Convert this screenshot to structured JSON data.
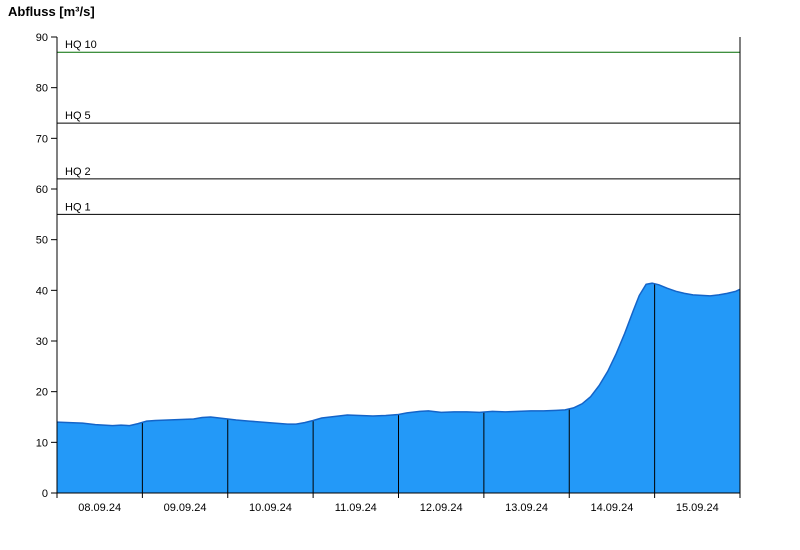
{
  "chart_data": {
    "type": "area",
    "title": "Abfluss [m³/s]",
    "xlabel": "",
    "ylabel": "Abfluss [m³/s]",
    "ylim": [
      0,
      90
    ],
    "yticks": [
      0,
      10,
      20,
      30,
      40,
      50,
      60,
      70,
      80,
      90
    ],
    "x_labels": [
      "08.09.24",
      "09.09.24",
      "10.09.24",
      "11.09.24",
      "12.09.24",
      "13.09.24",
      "14.09.24",
      "15.09.24"
    ],
    "x_range_days": [
      0,
      8
    ],
    "grid": false,
    "legend": "none",
    "thresholds": [
      {
        "label": "HQ 10",
        "value": 87,
        "color": "#006B00"
      },
      {
        "label": "HQ 5",
        "value": 73,
        "color": "#000000"
      },
      {
        "label": "HQ 2",
        "value": 62,
        "color": "#000000"
      },
      {
        "label": "HQ 1",
        "value": 55,
        "color": "#000000"
      }
    ],
    "series": [
      {
        "name": "Abfluss",
        "x": [
          0.0,
          0.15,
          0.3,
          0.45,
          0.55,
          0.65,
          0.75,
          0.85,
          0.95,
          1.05,
          1.15,
          1.3,
          1.45,
          1.6,
          1.7,
          1.8,
          1.9,
          2.0,
          2.1,
          2.25,
          2.4,
          2.55,
          2.7,
          2.8,
          2.9,
          3.0,
          3.1,
          3.25,
          3.4,
          3.55,
          3.7,
          3.85,
          4.0,
          4.1,
          4.25,
          4.35,
          4.5,
          4.65,
          4.8,
          4.95,
          5.1,
          5.25,
          5.4,
          5.55,
          5.7,
          5.85,
          5.95,
          6.05,
          6.15,
          6.25,
          6.35,
          6.45,
          6.55,
          6.65,
          6.75,
          6.82,
          6.9,
          6.97,
          7.05,
          7.15,
          7.25,
          7.35,
          7.45,
          7.55,
          7.65,
          7.75,
          7.85,
          7.95,
          8.0
        ],
        "values": [
          14.0,
          13.9,
          13.8,
          13.5,
          13.4,
          13.3,
          13.4,
          13.3,
          13.7,
          14.2,
          14.3,
          14.4,
          14.5,
          14.6,
          14.9,
          15.0,
          14.8,
          14.6,
          14.4,
          14.2,
          14.0,
          13.8,
          13.6,
          13.6,
          13.9,
          14.3,
          14.8,
          15.1,
          15.4,
          15.3,
          15.2,
          15.3,
          15.5,
          15.8,
          16.1,
          16.2,
          15.9,
          16.0,
          16.0,
          15.9,
          16.1,
          16.0,
          16.1,
          16.2,
          16.2,
          16.3,
          16.4,
          16.8,
          17.6,
          19.0,
          21.2,
          24.0,
          27.5,
          31.5,
          36.0,
          39.0,
          41.2,
          41.4,
          41.1,
          40.4,
          39.8,
          39.4,
          39.1,
          39.0,
          38.9,
          39.1,
          39.4,
          39.8,
          40.2
        ]
      }
    ],
    "style": {
      "area_fill": "#2399F8",
      "area_stroke": "#1464C8",
      "day_boundary_line": "#000000",
      "axis_color": "#000000",
      "background": "#ffffff"
    }
  }
}
